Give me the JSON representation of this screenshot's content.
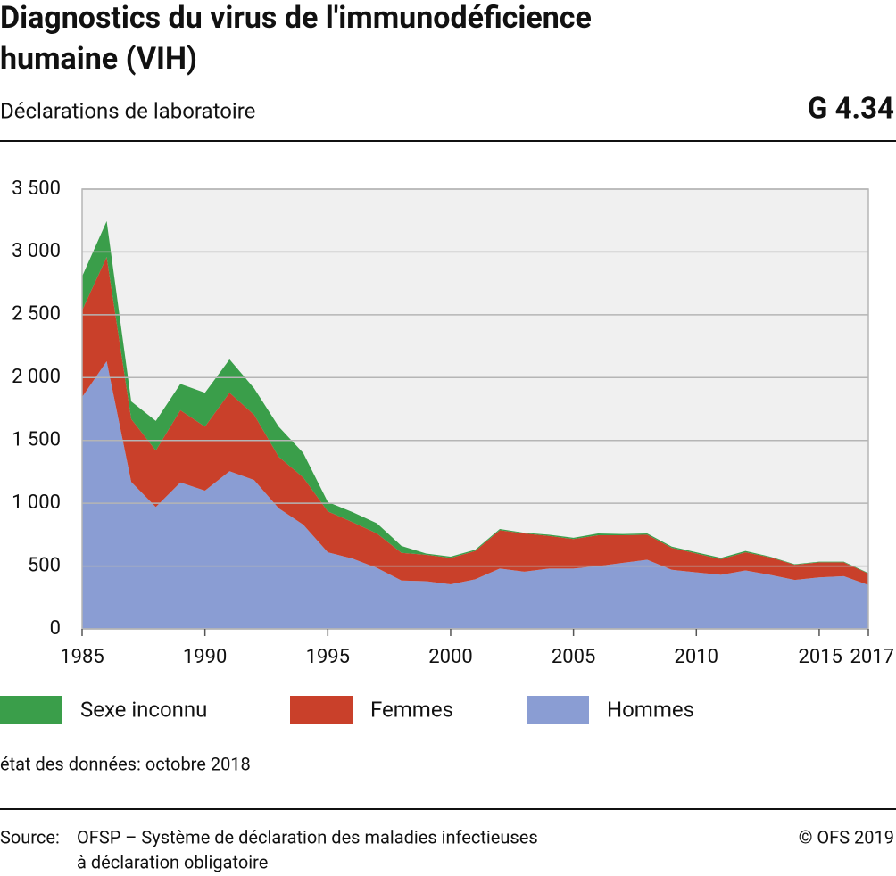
{
  "chart_data": {
    "type": "stacked_area",
    "title": [
      "Diagnostics du virus de l'immunodéficience",
      "humaine (VIH)"
    ],
    "subtitle": "Déclarations de laboratoire",
    "code": "G 4.34",
    "x": [
      1985,
      1986,
      1987,
      1988,
      1989,
      1990,
      1991,
      1992,
      1993,
      1994,
      1995,
      1996,
      1997,
      1998,
      1999,
      2000,
      2001,
      2002,
      2003,
      2004,
      2005,
      2006,
      2007,
      2008,
      2009,
      2010,
      2011,
      2012,
      2013,
      2014,
      2015,
      2016,
      2017
    ],
    "series": [
      {
        "name": "Sexe inconnu",
        "color": "#3a9e4a",
        "values": [
          270,
          285,
          140,
          235,
          210,
          270,
          265,
          210,
          240,
          195,
          75,
          80,
          80,
          55,
          10,
          10,
          10,
          10,
          5,
          10,
          10,
          15,
          10,
          10,
          10,
          10,
          10,
          10,
          5,
          5,
          5,
          5,
          5
        ]
      },
      {
        "name": "Femmes",
        "color": "#c9402a",
        "values": [
          690,
          830,
          500,
          450,
          575,
          510,
          625,
          520,
          410,
          375,
          325,
          290,
          275,
          220,
          210,
          210,
          225,
          305,
          305,
          260,
          235,
          245,
          220,
          200,
          175,
          150,
          125,
          145,
          140,
          120,
          120,
          110,
          90
        ]
      },
      {
        "name": "Hommes",
        "color": "#8a9dd3",
        "values": [
          1845,
          2130,
          1170,
          970,
          1165,
          1100,
          1255,
          1185,
          960,
          830,
          610,
          560,
          485,
          385,
          380,
          355,
          395,
          480,
          455,
          480,
          480,
          500,
          525,
          550,
          470,
          450,
          430,
          465,
          430,
          390,
          410,
          420,
          350
        ]
      }
    ],
    "xlim": [
      1985,
      2017
    ],
    "xticks": [
      1985,
      1990,
      1995,
      2000,
      2005,
      2010,
      2015,
      2017
    ],
    "ylim": [
      0,
      3500
    ],
    "yticks": [
      0,
      500,
      {
        "value": 1000,
        "label": "1 000"
      },
      {
        "value": 1500,
        "label": "1 500"
      },
      {
        "value": 2000,
        "label": "2 000"
      },
      {
        "value": 2500,
        "label": "2 500"
      },
      {
        "value": 3000,
        "label": "3 000"
      },
      {
        "value": 3500,
        "label": "3 500"
      }
    ],
    "grid": true,
    "note": "état des données: octobre 2018",
    "source_label": "Source:",
    "source_lines": [
      "OFSP – Système de déclaration des maladies infectieuses",
      "à déclaration obligatoire"
    ],
    "copyright": "© OFS 2019"
  }
}
